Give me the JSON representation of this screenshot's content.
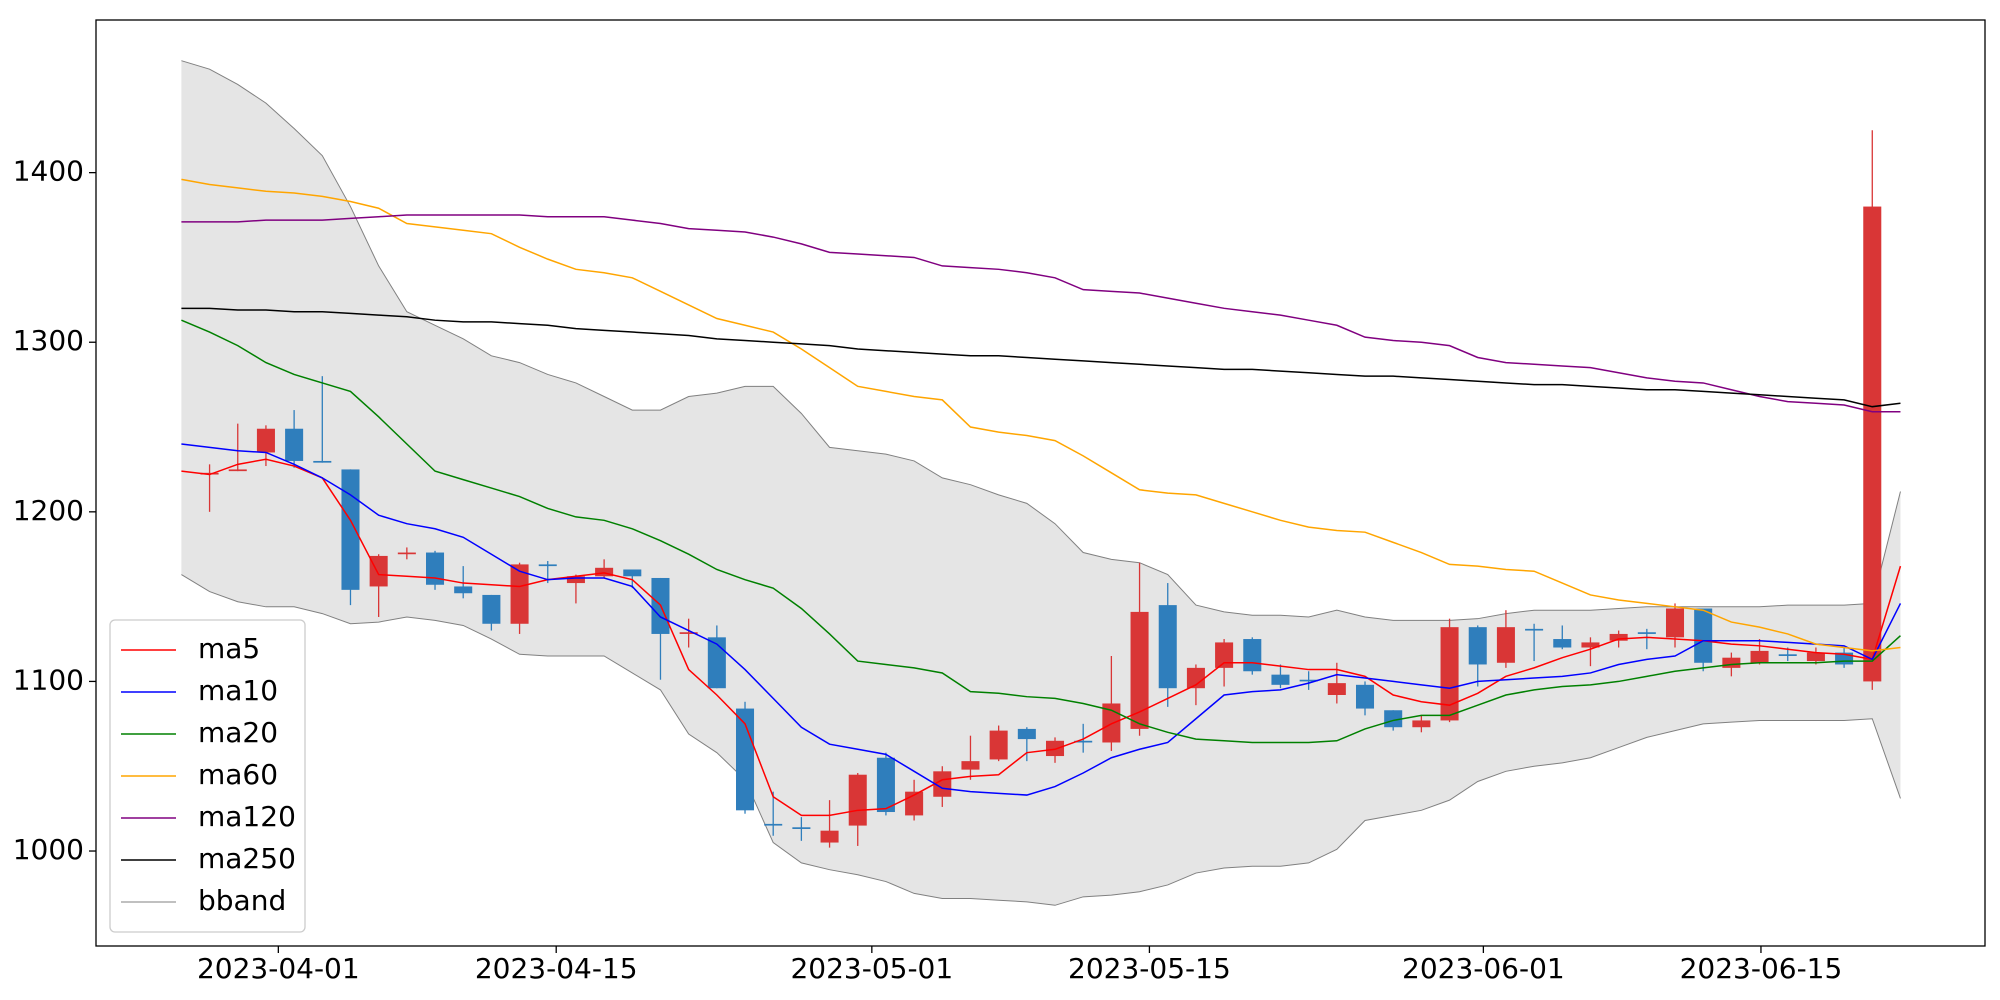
{
  "chart_data": {
    "type": "candlestick",
    "x": [
      0,
      1,
      2,
      3,
      4,
      5,
      6,
      7,
      8,
      9,
      10,
      11,
      12,
      13,
      14,
      15,
      16,
      17,
      18,
      19,
      20,
      21,
      22,
      23,
      24,
      25,
      26,
      27,
      28,
      29,
      30,
      31,
      32,
      33,
      34,
      35,
      36,
      37,
      38,
      39,
      40,
      41,
      42,
      43,
      44,
      45,
      46,
      47,
      48,
      49,
      50,
      51,
      52,
      53,
      54,
      55,
      56,
      57,
      58,
      59,
      60,
      61
    ],
    "xlim": [
      -3.03,
      64.0
    ],
    "xticks": [
      {
        "value": 3.44,
        "label": "2023-04-01"
      },
      {
        "value": 13.3,
        "label": "2023-04-15"
      },
      {
        "value": 24.5,
        "label": "2023-05-01"
      },
      {
        "value": 34.35,
        "label": "2023-05-15"
      },
      {
        "value": 46.2,
        "label": "2023-06-01"
      },
      {
        "value": 56.05,
        "label": "2023-06-15"
      }
    ],
    "ylim": [
      944,
      1490
    ],
    "yticks": [
      1000,
      1100,
      1200,
      1300,
      1400
    ],
    "up_color": "#d93636",
    "down_color": "#2f7ebc",
    "candles": {
      "open": [
        null,
        1222,
        1224,
        1235,
        1249,
        1230,
        1225,
        1156,
        1175,
        1176,
        1156,
        1151,
        1134,
        1169,
        1158,
        1162,
        1166,
        1161,
        1128,
        1126,
        1084,
        1016,
        1014,
        1005,
        1015,
        1055,
        1021,
        1032,
        1048,
        1054,
        1072,
        1056,
        1065,
        1064,
        1072,
        1145,
        1096,
        1108,
        1125,
        1104,
        1101,
        1092,
        1098,
        1083,
        1073,
        1077,
        1132,
        1111,
        1131,
        1125,
        1120,
        1124,
        1129,
        1126,
        1143,
        1108,
        1111,
        1116,
        1112,
        1117,
        1100,
        null
      ],
      "high": [
        null,
        1228,
        1252,
        1251,
        1260,
        1280,
        1225,
        1175,
        1179,
        1177,
        1168,
        1151,
        1170,
        1171,
        1163,
        1172,
        1166,
        1161,
        1137,
        1133,
        1088,
        1035,
        1020,
        1030,
        1046,
        1058,
        1042,
        1050,
        1068,
        1074,
        1073,
        1067,
        1075,
        1115,
        1170,
        1158,
        1110,
        1125,
        1126,
        1110,
        1106,
        1111,
        1100,
        1083,
        1080,
        1137,
        1133,
        1142,
        1134,
        1133,
        1126,
        1130,
        1131,
        1146,
        1143,
        1117,
        1125,
        1120,
        1120,
        1120,
        1425,
        null
      ],
      "low": [
        null,
        1200,
        1224,
        1227,
        1226,
        1229,
        1145,
        1138,
        1172,
        1154,
        1149,
        1130,
        1128,
        1158,
        1146,
        1161,
        1155,
        1101,
        1120,
        1096,
        1022,
        1009,
        1006,
        1002,
        1003,
        1021,
        1018,
        1026,
        1042,
        1053,
        1053,
        1052,
        1058,
        1059,
        1068,
        1085,
        1086,
        1097,
        1104,
        1096,
        1095,
        1087,
        1080,
        1071,
        1070,
        1076,
        1097,
        1108,
        1112,
        1119,
        1109,
        1120,
        1119,
        1120,
        1106,
        1103,
        1110,
        1112,
        1110,
        1108,
        1095,
        null
      ],
      "close": [
        null,
        1223,
        1225,
        1249,
        1230,
        1229,
        1154,
        1174,
        1176,
        1157,
        1152,
        1134,
        1169,
        1168,
        1162,
        1167,
        1162,
        1128,
        1129,
        1096,
        1024,
        1015,
        1013,
        1012,
        1045,
        1023,
        1035,
        1047,
        1053,
        1071,
        1066,
        1065,
        1064,
        1087,
        1141,
        1096,
        1108,
        1123,
        1106,
        1098,
        1100,
        1099,
        1084,
        1073,
        1077,
        1132,
        1110,
        1132,
        1130,
        1120,
        1123,
        1128,
        1128,
        1143,
        1111,
        1114,
        1118,
        1115,
        1117,
        1110,
        1380,
        null
      ]
    },
    "series": [
      {
        "name": "ma5",
        "color": "#ff0000",
        "values": [
          1224,
          1222,
          1228,
          1231,
          1227,
          1220,
          1195,
          1163,
          1162,
          1161,
          1158,
          1157,
          1156,
          1160,
          1162,
          1164,
          1160,
          1145,
          1107,
          1092,
          1075,
          1032,
          1021,
          1021,
          1024,
          1025,
          1033,
          1042,
          1044,
          1045,
          1058,
          1060,
          1066,
          1075,
          1082,
          1090,
          1098,
          1111,
          1111,
          1109,
          1107,
          1107,
          1103,
          1092,
          1088,
          1086,
          1093,
          1103,
          1108,
          1114,
          1119,
          1125,
          1126,
          1125,
          1124,
          1122,
          1121,
          1119,
          1117,
          1116,
          1113,
          1168
        ]
      },
      {
        "name": "ma10",
        "color": "#0000ff",
        "values": [
          1240,
          1238,
          1236,
          1235,
          1228,
          1220,
          1210,
          1198,
          1193,
          1190,
          1185,
          1175,
          1165,
          1160,
          1161,
          1161,
          1156,
          1138,
          1130,
          1122,
          1107,
          1090,
          1073,
          1063,
          1060,
          1057,
          1047,
          1037,
          1035,
          1034,
          1033,
          1038,
          1046,
          1055,
          1060,
          1064,
          1078,
          1092,
          1094,
          1095,
          1099,
          1104,
          1102,
          1100,
          1098,
          1096,
          1100,
          1101,
          1102,
          1103,
          1105,
          1110,
          1113,
          1115,
          1124,
          1124,
          1124,
          1123,
          1122,
          1121,
          1113,
          1146
        ]
      },
      {
        "name": "ma20",
        "color": "#008000",
        "values": [
          1313,
          1306,
          1298,
          1288,
          1281,
          1276,
          1271,
          1256,
          1240,
          1224,
          1219,
          1214,
          1209,
          1202,
          1197,
          1195,
          1190,
          1183,
          1175,
          1166,
          1160,
          1155,
          1143,
          1128,
          1112,
          1110,
          1108,
          1105,
          1094,
          1093,
          1091,
          1090,
          1087,
          1083,
          1075,
          1070,
          1066,
          1065,
          1064,
          1064,
          1064,
          1065,
          1072,
          1077,
          1080,
          1080,
          1086,
          1092,
          1095,
          1097,
          1098,
          1100,
          1103,
          1106,
          1108,
          1110,
          1111,
          1111,
          1111,
          1112,
          1112,
          1127
        ]
      },
      {
        "name": "ma60",
        "color": "#ffa500",
        "values": [
          1396,
          1393,
          1391,
          1389,
          1388,
          1386,
          1383,
          1379,
          1370,
          1368,
          1366,
          1364,
          1356,
          1349,
          1343,
          1341,
          1338,
          1330,
          1322,
          1314,
          1310,
          1306,
          1296,
          1285,
          1274,
          1271,
          1268,
          1266,
          1250,
          1247,
          1245,
          1242,
          1233,
          1223,
          1213,
          1211,
          1210,
          1205,
          1200,
          1195,
          1191,
          1189,
          1188,
          1182,
          1176,
          1169,
          1168,
          1166,
          1165,
          1158,
          1151,
          1148,
          1146,
          1144,
          1142,
          1135,
          1132,
          1128,
          1122,
          1120,
          1118,
          1120
        ]
      },
      {
        "name": "ma120",
        "color": "#800080",
        "values": [
          1371,
          1371,
          1371,
          1372,
          1372,
          1372,
          1373,
          1374,
          1375,
          1375,
          1375,
          1375,
          1375,
          1374,
          1374,
          1374,
          1372,
          1370,
          1367,
          1366,
          1365,
          1362,
          1358,
          1353,
          1352,
          1351,
          1350,
          1345,
          1344,
          1343,
          1341,
          1338,
          1331,
          1330,
          1329,
          1326,
          1323,
          1320,
          1318,
          1316,
          1313,
          1310,
          1303,
          1301,
          1300,
          1298,
          1291,
          1288,
          1287,
          1286,
          1285,
          1282,
          1279,
          1277,
          1276,
          1272,
          1268,
          1265,
          1264,
          1263,
          1259,
          1259
        ]
      },
      {
        "name": "ma250",
        "color": "#000000",
        "values": [
          1320,
          1320,
          1319,
          1319,
          1318,
          1318,
          1317,
          1316,
          1315,
          1313,
          1312,
          1312,
          1311,
          1310,
          1308,
          1307,
          1306,
          1305,
          1304,
          1302,
          1301,
          1300,
          1299,
          1298,
          1296,
          1295,
          1294,
          1293,
          1292,
          1292,
          1291,
          1290,
          1289,
          1288,
          1287,
          1286,
          1285,
          1284,
          1284,
          1283,
          1282,
          1281,
          1280,
          1280,
          1279,
          1278,
          1277,
          1276,
          1275,
          1275,
          1274,
          1273,
          1272,
          1272,
          1271,
          1270,
          1269,
          1268,
          1267,
          1266,
          1262,
          1264
        ]
      }
    ],
    "bband": {
      "name": "bband",
      "color": "#808080",
      "fill": "#e5e5e5",
      "upper": [
        1466,
        1461,
        1452,
        1441,
        1426,
        1410,
        1380,
        1345,
        1318,
        1310,
        1302,
        1292,
        1288,
        1281,
        1276,
        1268,
        1260,
        1260,
        1268,
        1270,
        1274,
        1274,
        1258,
        1238,
        1236,
        1234,
        1230,
        1220,
        1216,
        1210,
        1205,
        1193,
        1176,
        1172,
        1170,
        1163,
        1145,
        1141,
        1139,
        1139,
        1138,
        1142,
        1138,
        1136,
        1136,
        1136,
        1137,
        1140,
        1142,
        1142,
        1142,
        1143,
        1144,
        1144,
        1144,
        1144,
        1144,
        1145,
        1145,
        1145,
        1146,
        1212
      ],
      "lower": [
        1163,
        1153,
        1147,
        1144,
        1144,
        1140,
        1134,
        1135,
        1138,
        1136,
        1133,
        1125,
        1116,
        1115,
        1115,
        1115,
        1105,
        1095,
        1069,
        1058,
        1042,
        1005,
        993,
        989,
        986,
        982,
        975,
        972,
        972,
        971,
        970,
        968,
        973,
        974,
        976,
        980,
        987,
        990,
        991,
        991,
        993,
        1001,
        1018,
        1021,
        1024,
        1030,
        1041,
        1047,
        1050,
        1052,
        1055,
        1061,
        1067,
        1071,
        1075,
        1076,
        1077,
        1077,
        1077,
        1077,
        1078,
        1031
      ]
    },
    "legend": "lower left"
  }
}
